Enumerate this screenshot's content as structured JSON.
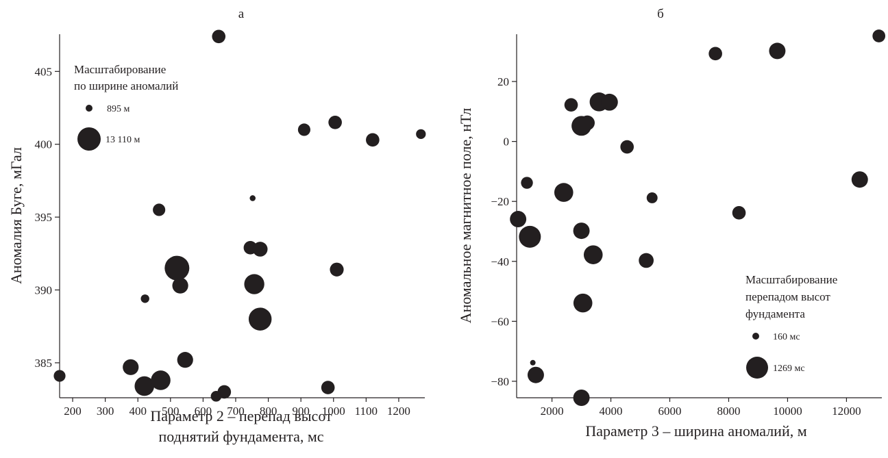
{
  "chart_data": [
    {
      "type": "scatter",
      "panel_label": "а",
      "xlabel_line1": "Параметр 2 – перепад высот",
      "xlabel_line2": "поднятий фундамента, мс",
      "ylabel": "Аномалия Буге, мГал",
      "xlim": [
        160,
        1280
      ],
      "ylim": [
        382.6,
        407.6
      ],
      "x_ticks": [
        200,
        300,
        400,
        500,
        600,
        700,
        800,
        900,
        1000,
        1100,
        1200
      ],
      "y_ticks": [
        385,
        390,
        395,
        400,
        405
      ],
      "legend": {
        "title_line1": "Масштабирование",
        "title_line2": "по ширине аномалий",
        "min_label": "895 м",
        "max_label": "13 110 м",
        "min_size": 895,
        "max_size": 13110
      },
      "points": [
        {
          "x": 648,
          "y": 407.4,
          "size": 3000
        },
        {
          "x": 910,
          "y": 401.0,
          "size": 2500
        },
        {
          "x": 1005,
          "y": 401.5,
          "size": 3000
        },
        {
          "x": 1120,
          "y": 400.3,
          "size": 3000
        },
        {
          "x": 1268,
          "y": 400.7,
          "size": 1500
        },
        {
          "x": 465,
          "y": 395.5,
          "size": 2500
        },
        {
          "x": 752,
          "y": 396.3,
          "size": 900
        },
        {
          "x": 745,
          "y": 392.9,
          "size": 3000
        },
        {
          "x": 775,
          "y": 392.8,
          "size": 3800
        },
        {
          "x": 520,
          "y": 391.5,
          "size": 13110
        },
        {
          "x": 530,
          "y": 390.3,
          "size": 4500
        },
        {
          "x": 757,
          "y": 390.4,
          "size": 8000
        },
        {
          "x": 1010,
          "y": 391.4,
          "size": 3200
        },
        {
          "x": 422,
          "y": 389.4,
          "size": 1200
        },
        {
          "x": 775,
          "y": 388.0,
          "size": 11000
        },
        {
          "x": 160,
          "y": 384.1,
          "size": 2200
        },
        {
          "x": 378,
          "y": 384.7,
          "size": 4500
        },
        {
          "x": 545,
          "y": 385.2,
          "size": 4500
        },
        {
          "x": 420,
          "y": 383.4,
          "size": 7500
        },
        {
          "x": 470,
          "y": 383.8,
          "size": 7500
        },
        {
          "x": 665,
          "y": 383.0,
          "size": 3000
        },
        {
          "x": 640,
          "y": 382.7,
          "size": 1800
        },
        {
          "x": 983,
          "y": 383.3,
          "size": 3000
        }
      ]
    },
    {
      "type": "scatter",
      "panel_label": "б",
      "xlabel": "Параметр 3 – ширина аномалий, м",
      "ylabel": "Аномальное магнитное поле, нТл",
      "xlim": [
        800,
        13200
      ],
      "ylim": [
        -85.5,
        36
      ],
      "x_ticks": [
        2000,
        4000,
        6000,
        8000,
        10000,
        12000
      ],
      "y_ticks": [
        -80,
        -60,
        -40,
        -20,
        0,
        20
      ],
      "legend": {
        "title_line1": "Масштабирование",
        "title_line2": "перепадом высот",
        "title_line3": "фундамента",
        "min_label": "160 мс",
        "max_label": "1269 мс",
        "min_size": 160,
        "max_size": 1269
      },
      "points": [
        {
          "x": 13100,
          "y": 35.2,
          "size": 380
        },
        {
          "x": 7550,
          "y": 29.3,
          "size": 420
        },
        {
          "x": 9650,
          "y": 30.2,
          "size": 650
        },
        {
          "x": 2650,
          "y": 12.2,
          "size": 420
        },
        {
          "x": 3600,
          "y": 13.2,
          "size": 900
        },
        {
          "x": 3950,
          "y": 13.1,
          "size": 700
        },
        {
          "x": 3200,
          "y": 6.2,
          "size": 520
        },
        {
          "x": 3000,
          "y": 5.2,
          "size": 1000
        },
        {
          "x": 4550,
          "y": -1.8,
          "size": 420
        },
        {
          "x": 1150,
          "y": -13.8,
          "size": 330
        },
        {
          "x": 2400,
          "y": -17.0,
          "size": 900
        },
        {
          "x": 5400,
          "y": -18.8,
          "size": 280
        },
        {
          "x": 12450,
          "y": -12.7,
          "size": 650
        },
        {
          "x": 850,
          "y": -25.9,
          "size": 650
        },
        {
          "x": 8350,
          "y": -23.8,
          "size": 420
        },
        {
          "x": 3000,
          "y": -29.8,
          "size": 650
        },
        {
          "x": 1250,
          "y": -31.8,
          "size": 1269
        },
        {
          "x": 3400,
          "y": -37.8,
          "size": 900
        },
        {
          "x": 5200,
          "y": -39.7,
          "size": 520
        },
        {
          "x": 3050,
          "y": -53.9,
          "size": 900
        },
        {
          "x": 1350,
          "y": -73.8,
          "size": 160
        },
        {
          "x": 1450,
          "y": -77.9,
          "size": 650
        },
        {
          "x": 3000,
          "y": -85.5,
          "size": 650
        }
      ]
    }
  ]
}
